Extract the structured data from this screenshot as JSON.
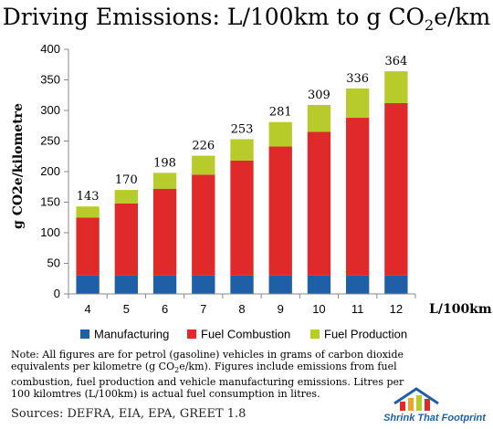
{
  "title": {
    "main": "Driving Emissions: L/100km to g CO",
    "sub": "2",
    "tail": "e/km"
  },
  "chart_data": {
    "type": "bar",
    "stacked": true,
    "title": "Driving Emissions: L/100km to g CO2e/km",
    "xlabel": "L/100km",
    "ylabel": "g CO2e/kilometre",
    "ylim": [
      0,
      400
    ],
    "yticks": [
      "0",
      "50",
      "100",
      "150",
      "200",
      "250",
      "300",
      "350",
      "400"
    ],
    "categories": [
      "4",
      "5",
      "6",
      "7",
      "8",
      "9",
      "10",
      "11",
      "12"
    ],
    "series": [
      {
        "name": "Manufacturing",
        "color": "#1f5fa6",
        "values": [
          30,
          30,
          30,
          30,
          30,
          30,
          30,
          30,
          30
        ]
      },
      {
        "name": "Fuel Combustion",
        "color": "#e02a2a",
        "values": [
          95,
          118,
          142,
          165,
          188,
          211,
          235,
          258,
          282
        ]
      },
      {
        "name": "Fuel Production",
        "color": "#b7cc2a",
        "values": [
          18,
          22,
          26,
          31,
          35,
          40,
          44,
          48,
          52
        ]
      }
    ],
    "totals": [
      "143",
      "170",
      "198",
      "226",
      "253",
      "281",
      "309",
      "336",
      "364"
    ],
    "legend_position": "bottom",
    "grid": false
  },
  "note": {
    "part1": "Note:  All figures are for petrol (gasoline) vehicles in grams of carbon dioxide equivalents per kilometre (g CO",
    "sub": "2",
    "part2": "e/km).  Figures include emissions from fuel combustion, fuel production and vehicle manufacturing emissions.  Litres per 100 kilomtres (L/100km) is actual fuel consumption in litres."
  },
  "sources": "Sources:  DEFRA, EIA, EPA, GREET 1.8",
  "logo": {
    "text": "Shrink That Footprint",
    "icon": "house-chart-logo-icon"
  }
}
